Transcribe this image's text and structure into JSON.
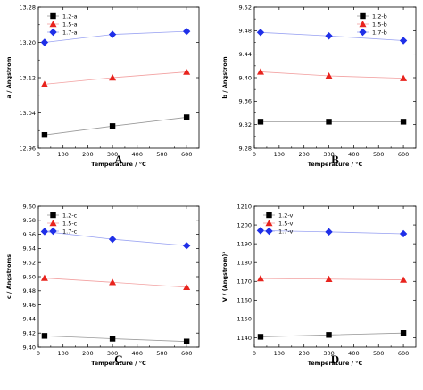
{
  "colors": {
    "series": [
      "#000000",
      "#e8231d",
      "#1f2fe8"
    ],
    "fit_lines": [
      "#999999",
      "#f2a0a0",
      "#9aa3f2"
    ],
    "frame": "#000000"
  },
  "chart_data": [
    {
      "type": "scatter",
      "panel_label": "A",
      "xlabel": "Temperature / °C",
      "ylabel": "a / Angstrom",
      "xlim": [
        0,
        650
      ],
      "ylim": [
        12.96,
        13.28
      ],
      "xticks": [
        0,
        100,
        200,
        300,
        400,
        500,
        600
      ],
      "yticks": [
        12.96,
        13.04,
        13.12,
        13.2,
        13.28
      ],
      "yticks_minor": [
        13.0,
        13.08,
        13.16,
        13.24
      ],
      "legend_position": "top-left",
      "series": [
        {
          "name": "1.2-a",
          "marker": "square",
          "x": [
            25,
            300,
            600
          ],
          "y": [
            12.99,
            13.01,
            13.03
          ]
        },
        {
          "name": "1.5-a",
          "marker": "triangle",
          "x": [
            25,
            300,
            600
          ],
          "y": [
            13.105,
            13.12,
            13.133
          ]
        },
        {
          "name": "1.7-a",
          "marker": "diamond",
          "x": [
            25,
            300,
            600
          ],
          "y": [
            13.2,
            13.218,
            13.225
          ]
        }
      ]
    },
    {
      "type": "scatter",
      "panel_label": "B",
      "xlabel": "Temperature / °C",
      "ylabel": "b / Angstrom",
      "xlim": [
        0,
        650
      ],
      "ylim": [
        9.28,
        9.52
      ],
      "xticks": [
        0,
        100,
        200,
        300,
        400,
        500,
        600
      ],
      "yticks": [
        9.28,
        9.32,
        9.36,
        9.4,
        9.44,
        9.48,
        9.52
      ],
      "yticks_minor": [
        9.3,
        9.34,
        9.38,
        9.42,
        9.46,
        9.5
      ],
      "legend_position": "top-right",
      "series": [
        {
          "name": "1.2-b",
          "marker": "square",
          "x": [
            25,
            300,
            600
          ],
          "y": [
            9.325,
            9.325,
            9.325
          ]
        },
        {
          "name": "1.5-b",
          "marker": "triangle",
          "x": [
            25,
            300,
            600
          ],
          "y": [
            9.41,
            9.403,
            9.399
          ]
        },
        {
          "name": "1.7-b",
          "marker": "diamond",
          "x": [
            25,
            300,
            600
          ],
          "y": [
            9.477,
            9.471,
            9.463
          ]
        }
      ]
    },
    {
      "type": "scatter",
      "panel_label": "C",
      "xlabel": "Temperature / °C",
      "ylabel": "c / Angstroms",
      "xlim": [
        0,
        650
      ],
      "ylim": [
        9.4,
        9.6
      ],
      "xticks": [
        0,
        100,
        200,
        300,
        400,
        500,
        600
      ],
      "yticks": [
        9.4,
        9.42,
        9.44,
        9.46,
        9.48,
        9.5,
        9.52,
        9.54,
        9.56,
        9.58,
        9.6
      ],
      "yticks_minor": [],
      "legend_position": "top-left",
      "series": [
        {
          "name": "1.2-c",
          "marker": "square",
          "x": [
            25,
            300,
            600
          ],
          "y": [
            9.416,
            9.412,
            9.408
          ]
        },
        {
          "name": "1.5-c",
          "marker": "triangle",
          "x": [
            25,
            300,
            600
          ],
          "y": [
            9.498,
            9.492,
            9.485
          ]
        },
        {
          "name": "1.7-c",
          "marker": "diamond",
          "x": [
            25,
            300,
            600
          ],
          "y": [
            9.564,
            9.553,
            9.544
          ]
        }
      ]
    },
    {
      "type": "scatter",
      "panel_label": "D",
      "xlabel": "Temperature / °C",
      "ylabel": "V / (Angstrom)³",
      "xlim": [
        0,
        650
      ],
      "ylim": [
        1135,
        1210
      ],
      "xticks": [
        0,
        100,
        200,
        300,
        400,
        500,
        600
      ],
      "yticks": [
        1140,
        1150,
        1160,
        1170,
        1180,
        1190,
        1200,
        1210
      ],
      "yticks_minor": [],
      "legend_position": "top-left",
      "series": [
        {
          "name": "1.2-v",
          "marker": "square",
          "x": [
            25,
            300,
            600
          ],
          "y": [
            1140.5,
            1141.5,
            1142.5
          ]
        },
        {
          "name": "1.5-v",
          "marker": "triangle",
          "x": [
            25,
            300,
            600
          ],
          "y": [
            1171.5,
            1171.2,
            1170.8
          ]
        },
        {
          "name": "1.7-v",
          "marker": "diamond",
          "x": [
            25,
            300,
            600
          ],
          "y": [
            1197,
            1196.3,
            1195.3
          ]
        }
      ]
    }
  ]
}
